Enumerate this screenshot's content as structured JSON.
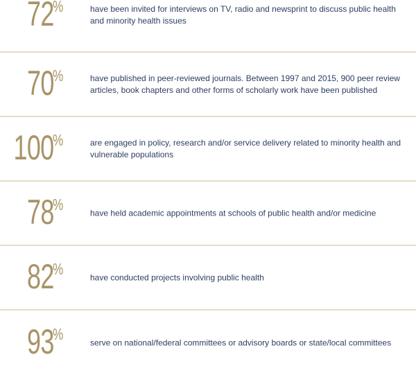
{
  "colors": {
    "accent_gold": "#a89468",
    "text_navy": "#2d3e60",
    "divider": "#e6dcc8"
  },
  "stats": [
    {
      "value": "72",
      "unit": "%",
      "text": "have been invited for interviews on TV, radio and newsprint to discuss public health and minority health issues"
    },
    {
      "value": "70",
      "unit": "%",
      "text": "have published in peer-reviewed journals. Between 1997 and 2015, 900 peer review articles, book chapters and other forms of scholarly work have been published"
    },
    {
      "value": "100",
      "unit": "%",
      "text": "are engaged in policy, research and/or service delivery related to minority health and vulnerable populations"
    },
    {
      "value": "78",
      "unit": "%",
      "text": "have held academic appointments at schools of public health and/or medicine"
    },
    {
      "value": "82",
      "unit": "%",
      "text": "have conducted projects involving public health"
    },
    {
      "value": "93",
      "unit": "%",
      "text": "serve on national/federal committees or advisory boards or state/local committees"
    }
  ]
}
